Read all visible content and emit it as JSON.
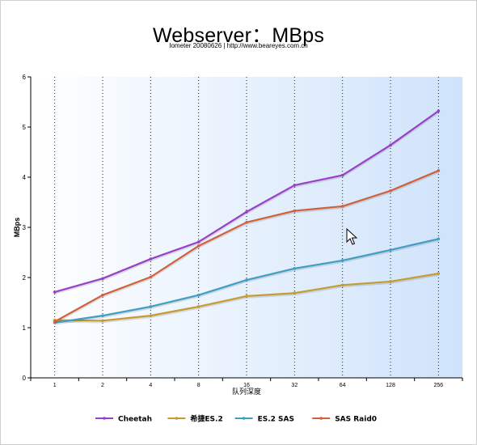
{
  "chart_data": {
    "type": "line",
    "title": "Webserver：MBps",
    "subtitle": "Iometer 20080626 | http://www.beareyes.com.cn",
    "xlabel": "队列深度",
    "ylabel": "MBps",
    "categories": [
      "1",
      "2",
      "4",
      "8",
      "16",
      "32",
      "64",
      "128",
      "256"
    ],
    "ylim": [
      0,
      6
    ],
    "yticks": [
      "0",
      "1",
      "2",
      "3",
      "4",
      "5",
      "6"
    ],
    "grid": "vertical dotted",
    "legend_position": "bottom",
    "series": [
      {
        "name": "Cheetah",
        "color": "#9b3fc7",
        "values": [
          1.71,
          1.98,
          2.37,
          2.71,
          3.31,
          3.84,
          4.04,
          4.64,
          5.32
        ]
      },
      {
        "name": "希捷ES.2",
        "color": "#c69c2e",
        "values": [
          1.15,
          1.14,
          1.24,
          1.42,
          1.63,
          1.69,
          1.85,
          1.92,
          2.08
        ]
      },
      {
        "name": "ES.2 SAS",
        "color": "#3f9ec2",
        "values": [
          1.1,
          1.24,
          1.42,
          1.65,
          1.95,
          2.18,
          2.34,
          2.55,
          2.77
        ]
      },
      {
        "name": "SAS Raid0",
        "color": "#d2613a",
        "values": [
          1.12,
          1.65,
          2.01,
          2.63,
          3.1,
          3.33,
          3.42,
          3.73,
          4.13
        ]
      }
    ]
  }
}
